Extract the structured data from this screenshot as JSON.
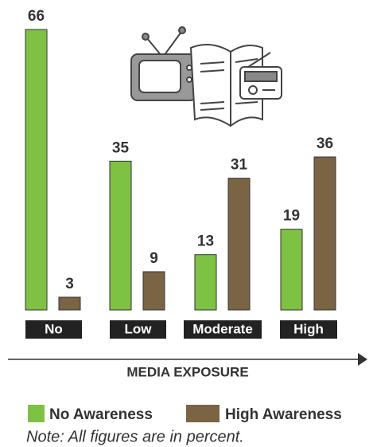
{
  "chart_data": {
    "type": "bar",
    "categories": [
      "No",
      "Low",
      "Moderate",
      "High"
    ],
    "series": [
      {
        "name": "No Awareness",
        "color": "#7dc242",
        "values": [
          66,
          35,
          13,
          19
        ]
      },
      {
        "name": "High Awareness",
        "color": "#7a6444",
        "values": [
          3,
          9,
          31,
          36
        ]
      }
    ],
    "x_label": "MEDIA EXPOSURE",
    "note": "Note: All figures are in percent."
  }
}
